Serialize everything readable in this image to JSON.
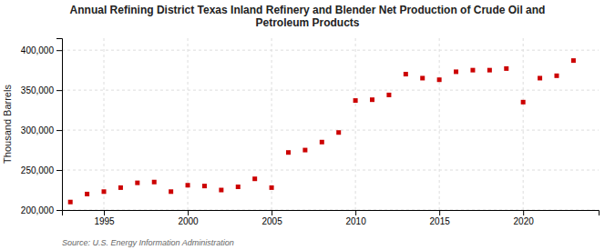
{
  "chart_data": {
    "type": "scatter",
    "title": "Annual Refining District Texas Inland Refinery and Blender Net Production of Crude Oil and\nPetroleum Products",
    "ylabel": "Thousand Barrels",
    "annotations": [
      "Source: U.S. Energy Information Administration"
    ],
    "x": [
      1993,
      1994,
      1995,
      1996,
      1997,
      1998,
      1999,
      2000,
      2001,
      2002,
      2003,
      2004,
      2005,
      2006,
      2007,
      2008,
      2009,
      2010,
      2011,
      2012,
      2013,
      2014,
      2015,
      2016,
      2017,
      2018,
      2019,
      2020,
      2021,
      2022,
      2023
    ],
    "values": [
      210000,
      220000,
      223000,
      228000,
      234000,
      235000,
      223000,
      231000,
      230000,
      225000,
      229000,
      239000,
      228000,
      272000,
      275000,
      285000,
      297000,
      337000,
      338000,
      344000,
      370000,
      365000,
      363000,
      373000,
      375000,
      375000,
      377000,
      335000,
      365000,
      368000,
      387000
    ],
    "color": "#cc0000",
    "marker": "square",
    "xlim": [
      1992.5,
      2024.5
    ],
    "xticks": [
      1995,
      2000,
      2005,
      2010,
      2015,
      2020
    ],
    "ylim": [
      200000,
      415000
    ],
    "yticks": [
      {
        "value": 200000,
        "label": "200,000"
      },
      {
        "value": 250000,
        "label": "250,000"
      },
      {
        "value": 300000,
        "label": "300,000"
      },
      {
        "value": 350000,
        "label": "350,000"
      },
      {
        "value": 400000,
        "label": "400,000"
      }
    ],
    "grid": true
  }
}
